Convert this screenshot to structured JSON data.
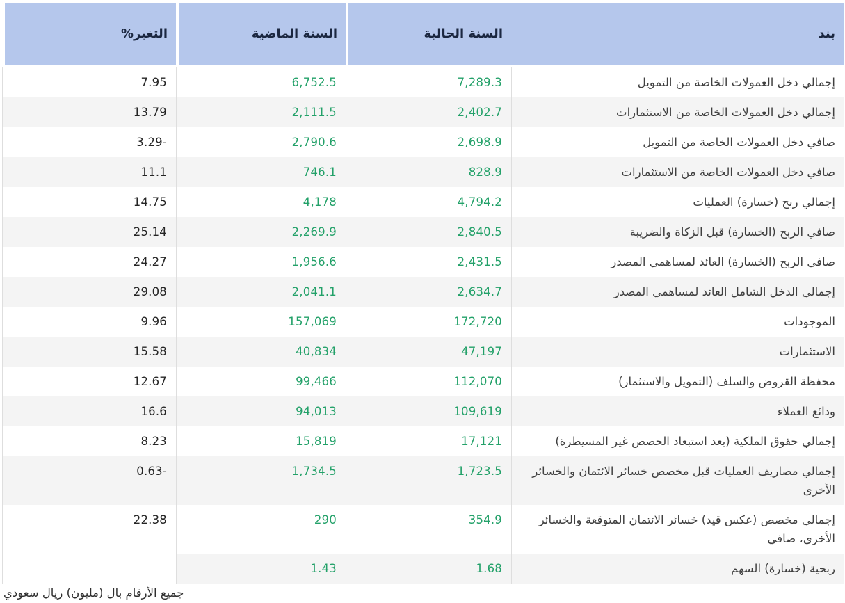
{
  "table": {
    "columns": [
      {
        "key": "item",
        "label": "بند"
      },
      {
        "key": "current",
        "label": "السنة الحالية"
      },
      {
        "key": "previous",
        "label": "السنة الماضية"
      },
      {
        "key": "change",
        "label": "التغير%"
      }
    ],
    "rows": [
      {
        "item": "إجمالي دخل العمولات الخاصة من التمويل",
        "current": "7,289.3",
        "previous": "6,752.5",
        "change": "7.95"
      },
      {
        "item": "إجمالي دخل العمولات الخاصة من الاستثمارات",
        "current": "2,402.7",
        "previous": "2,111.5",
        "change": "13.79"
      },
      {
        "item": "صافي دخل العمولات الخاصة من التمويل",
        "current": "2,698.9",
        "previous": "2,790.6",
        "change": "3.29-"
      },
      {
        "item": "صافي دخل العمولات الخاصة من الاستثمارات",
        "current": "828.9",
        "previous": "746.1",
        "change": "11.1"
      },
      {
        "item": "إجمالي ربح (خسارة) العمليات",
        "current": "4,794.2",
        "previous": "4,178",
        "change": "14.75"
      },
      {
        "item": "صافي الربح (الخسارة) قبل الزكاة والضريبة",
        "current": "2,840.5",
        "previous": "2,269.9",
        "change": "25.14"
      },
      {
        "item": "صافي الربح (الخسارة) العائد لمساهمي المصدر",
        "current": "2,431.5",
        "previous": "1,956.6",
        "change": "24.27"
      },
      {
        "item": "إجمالي الدخل الشامل العائد لمساهمي المصدر",
        "current": "2,634.7",
        "previous": "2,041.1",
        "change": "29.08"
      },
      {
        "item": "الموجودات",
        "current": "172,720",
        "previous": "157,069",
        "change": "9.96"
      },
      {
        "item": "الاستثمارات",
        "current": "47,197",
        "previous": "40,834",
        "change": "15.58"
      },
      {
        "item": "محفظة القروض والسلف (التمويل والاستثمار)",
        "current": "112,070",
        "previous": "99,466",
        "change": "12.67"
      },
      {
        "item": "ودائع العملاء",
        "current": "109,619",
        "previous": "94,013",
        "change": "16.6"
      },
      {
        "item": "إجمالي حقوق الملكية (بعد استبعاد الحصص غير المسيطرة)",
        "current": "17,121",
        "previous": "15,819",
        "change": "8.23"
      },
      {
        "item": "إجمالي مصاريف العمليات قبل مخصص خسائر الائتمان والخسائر الأخرى",
        "current": "1,723.5",
        "previous": "1,734.5",
        "change": "0.63-"
      },
      {
        "item": "إجمالي مخصص (عكس قيد) خسائر الائتمان المتوقعة والخسائر الأخرى، صافي",
        "current": "354.9",
        "previous": "290",
        "change": "22.38"
      },
      {
        "item": "ربحية (خسارة) السهم",
        "current": "1.68",
        "previous": "1.43",
        "change": ""
      }
    ]
  },
  "footer": {
    "note": "جميع الأرقام بال (مليون) ريال سعودي"
  },
  "colors": {
    "header_bg": "#b5c7ec",
    "header_text": "#1b2740",
    "value_green": "#23a169",
    "change_text": "#252525",
    "row_alt_bg": "#f4f4f4",
    "divider": "#dedede",
    "page_bg": "#ffffff"
  }
}
